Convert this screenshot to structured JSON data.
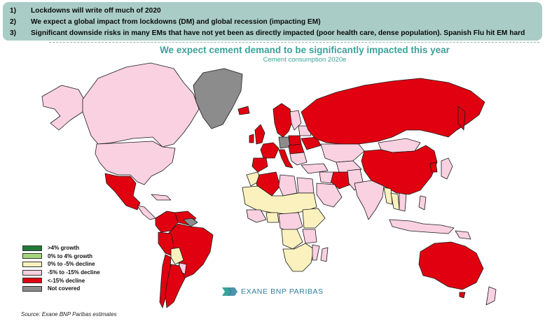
{
  "header": {
    "bullets": [
      {
        "num": "1)",
        "text": "Lockdowns will write off much of 2020"
      },
      {
        "num": "2)",
        "text": "We expect a global impact from lockdowns (DM) and global recession (impacting EM)"
      },
      {
        "num": "3)",
        "text": "Significant downside risks in many EMs that have not yet been as directly impacted (poor health care, dense population). Spanish Flu hit EM hard"
      }
    ]
  },
  "title": "We expect cement demand to be significantly impacted this year",
  "subtitle": "Cement consumption 2020e",
  "legend": {
    "items": [
      {
        "label": ">4% growth",
        "color": "#1f7a36"
      },
      {
        "label": "0% to 4% growth",
        "color": "#a6d67b"
      },
      {
        "label": "0% to -5% decline",
        "color": "#fbf1be"
      },
      {
        "label": "-5% to -15% decline",
        "color": "#f9d1e0"
      },
      {
        "label": "<-15% decline",
        "color": "#e1000f"
      },
      {
        "label": "Not covered",
        "color": "#8c8c8c"
      }
    ]
  },
  "logo": {
    "text": "EXANE BNP PARIBAS",
    "icon": "exane-logo-icon"
  },
  "source": "Source: Exane BNP Paribas estimates",
  "colors": {
    "red": "#e1000f",
    "pink": "#f9d1e0",
    "yellow": "#fbf1be",
    "grey": "#8c8c8c",
    "border": "#1a1a1a",
    "accent": "#3aa39a"
  }
}
